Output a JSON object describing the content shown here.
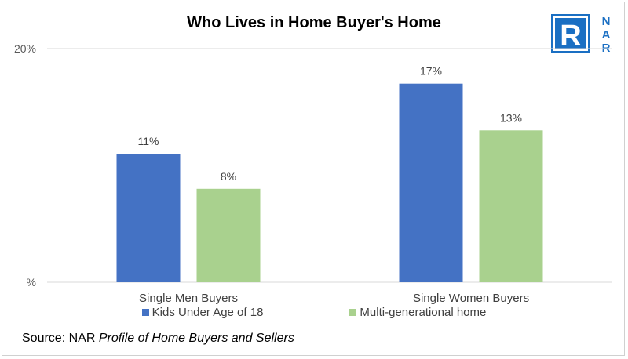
{
  "title": "Who Lives in Home Buyer's Home",
  "logo": {
    "text": "NAR",
    "letters": [
      "N",
      "A",
      "R"
    ],
    "mark": "R",
    "color": "#1a6fc3"
  },
  "source": {
    "prefix": "Source: NAR ",
    "publication": "Profile of Home Buyers and Sellers"
  },
  "chart_data": {
    "type": "bar",
    "title": "Who Lives in Home Buyer's Home",
    "categories": [
      "Single Men Buyers",
      "Single Women Buyers"
    ],
    "series": [
      {
        "name": "Kids Under Age of 18",
        "values": [
          11,
          17
        ],
        "labels": [
          "11%",
          "17%"
        ],
        "color": "#4472c4"
      },
      {
        "name": "Multi-generational home",
        "values": [
          8,
          13
        ],
        "labels": [
          "8%",
          "13%"
        ],
        "color": "#a9d18e"
      }
    ],
    "ylim": [
      0,
      20
    ],
    "yticks": [
      0,
      20
    ],
    "ytick_labels": [
      "%",
      "20%"
    ],
    "grid": "horizontal",
    "legend": "bottom",
    "xlabel": "",
    "ylabel": ""
  }
}
